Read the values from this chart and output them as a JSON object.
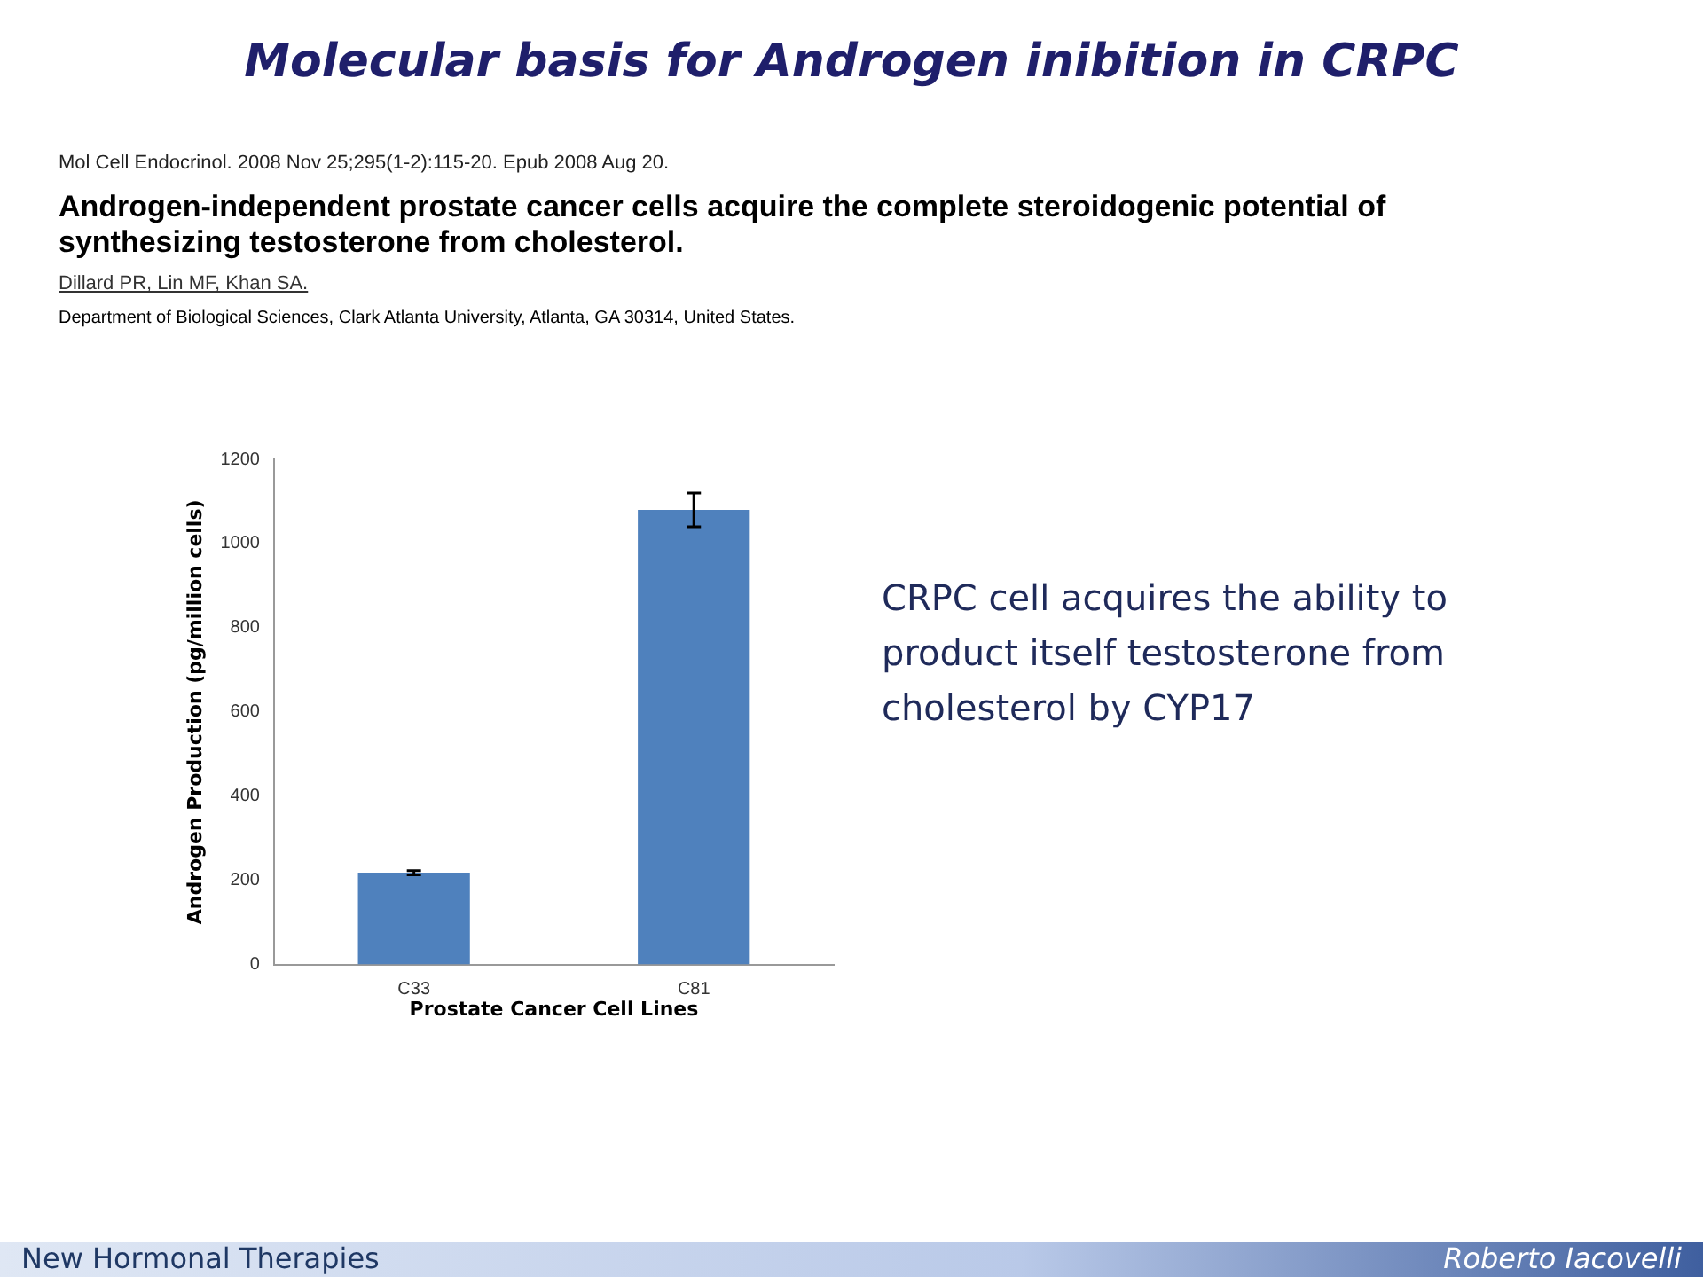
{
  "chart_data": {
    "type": "bar",
    "title": "Molecular basis for Androgen inibition in CRPC",
    "xlabel": "Prostate Cancer Cell Lines",
    "ylabel": "Androgen Production (pg/million cells)",
    "categories": [
      "C33",
      "C81"
    ],
    "values": [
      218,
      1080
    ],
    "errors": [
      5,
      40
    ],
    "color": "#4f81bd",
    "ylim": [
      0,
      1200
    ],
    "yticks": [
      0,
      200,
      400,
      600,
      800,
      1000,
      1200
    ],
    "grid": false,
    "legend": false,
    "annotations": [
      "Mol Cell Endocrinol. 2008 Nov 25;295(1-2):115-20. Epub 2008 Aug 20.",
      "Androgen-independent prostate cancer cells acquire the complete steroidogenic potential of synthesizing testosterone from cholesterol.",
      "Dillard PR, Lin MF, Khan SA.",
      "Department of Biological Sciences, Clark Atlanta University, Atlanta, GA 30314, United States.",
      "CRPC cell acquires the ability to product itself testosterone from cholesterol  by CYP17",
      "New Hormonal Therapies",
      "Roberto Iacovelli"
    ]
  }
}
